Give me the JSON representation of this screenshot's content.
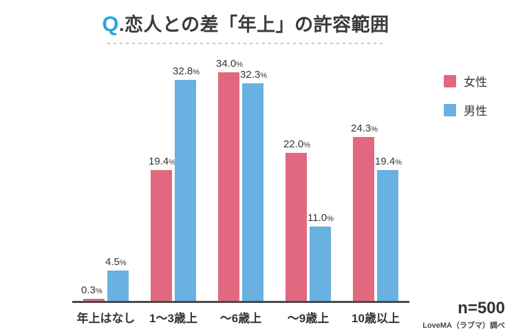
{
  "title": {
    "prefix": "Q",
    "text": ".恋人との差「年上」の許容範囲"
  },
  "legend": {
    "female": "女性",
    "male": "男性"
  },
  "footer": {
    "sample_size": "n=500",
    "source": "LoveMA（ラブマ）調べ"
  },
  "colors": {
    "female": "#e2687f",
    "male": "#68b1e0",
    "title_q": "#29a5de",
    "axis": "#4a4a4a",
    "text": "#333333"
  },
  "chart_data": {
    "type": "bar",
    "title": "Q.恋人との差「年上」の許容範囲",
    "categories": [
      "年上はなし",
      "1〜3歳上",
      "〜6歳上",
      "〜9歳上",
      "10歳以上"
    ],
    "series": [
      {
        "name": "女性",
        "color_key": "female",
        "values": [
          0.3,
          19.4,
          34.0,
          22.0,
          24.3
        ]
      },
      {
        "name": "男性",
        "color_key": "male",
        "values": [
          4.5,
          32.8,
          32.3,
          11.0,
          19.4
        ]
      }
    ],
    "unit": "%",
    "value_labels": "shown above each bar, one decimal place",
    "xlabel": "",
    "ylabel": "",
    "ylim": [
      0,
      36
    ],
    "grid": false,
    "y_axis_shown": false,
    "legend_position": "right"
  }
}
